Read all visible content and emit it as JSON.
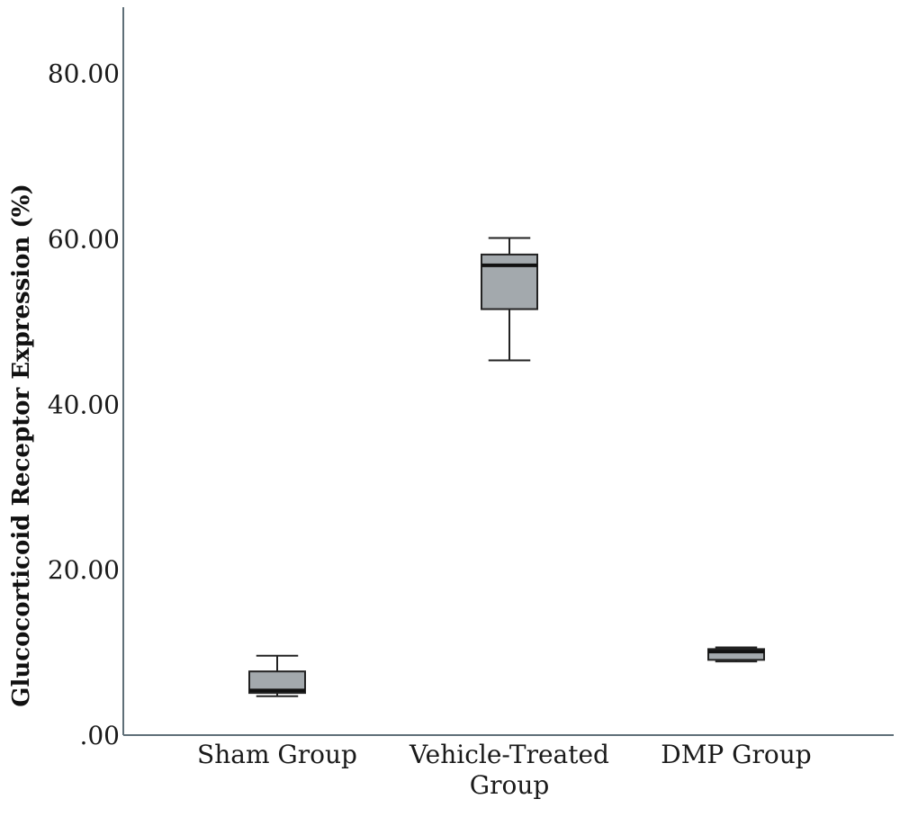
{
  "chart_data": {
    "type": "boxplot",
    "title": "",
    "xlabel": "",
    "ylabel": "Glucocorticoid Receptor Expression (%)",
    "ylim": [
      0,
      88
    ],
    "yticks": [
      0,
      20,
      40,
      60,
      80
    ],
    "ytick_labels": [
      ".00",
      "20.00",
      "40.00",
      "60.00",
      "80.00"
    ],
    "grid": false,
    "box_color": "#a3a9ad",
    "categories": [
      [
        "Sham Group"
      ],
      [
        "Vehicle-Treated",
        "Group"
      ],
      [
        "DMP Group"
      ]
    ],
    "series": [
      {
        "min": 4.7,
        "q1": 5.1,
        "median": 5.4,
        "q3": 7.7,
        "max": 9.6
      },
      {
        "min": 45.3,
        "q1": 51.5,
        "median": 56.8,
        "q3": 58.1,
        "max": 60.1
      },
      {
        "min": 8.9,
        "q1": 9.1,
        "median": 10.1,
        "q3": 10.4,
        "max": 10.6
      }
    ]
  }
}
